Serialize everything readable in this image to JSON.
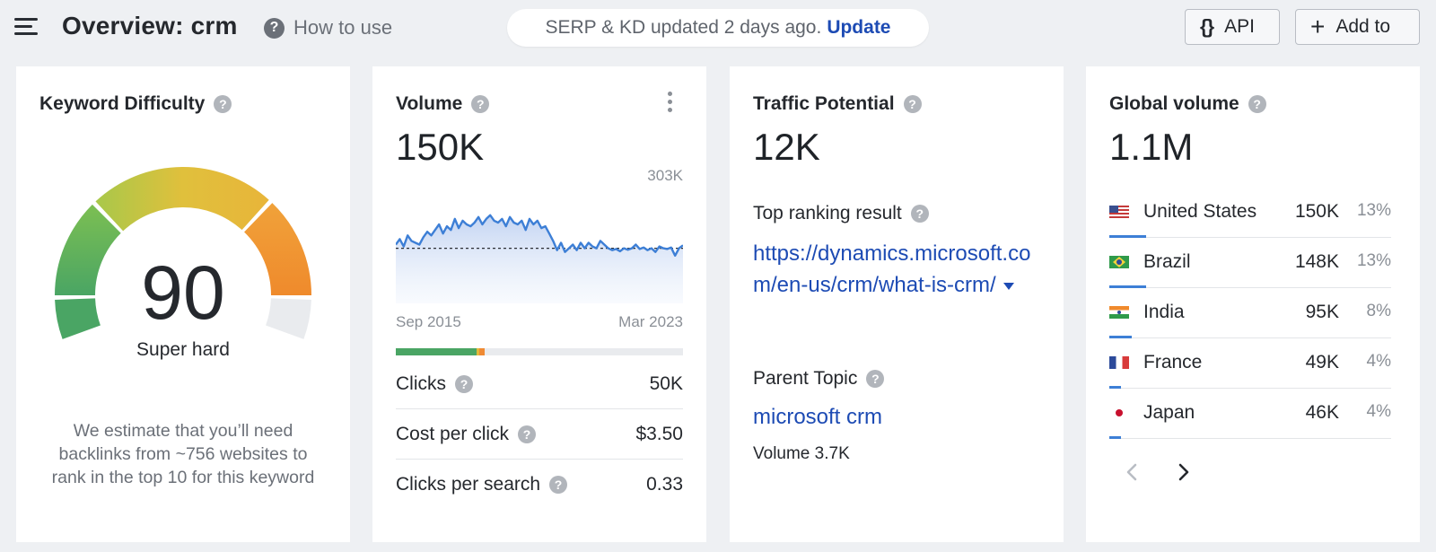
{
  "header": {
    "title": "Overview: crm",
    "how_to_use": "How to use",
    "update_notice": "SERP & KD updated 2 days ago.",
    "update_link": "Update",
    "api_label": "API",
    "add_to_label": "Add to"
  },
  "keyword_difficulty": {
    "title": "Keyword Difficulty",
    "score": "90",
    "score_value": 90,
    "label": "Super hard",
    "description": "We estimate that you’ll need backlinks from ~756 websites to rank in the top 10 for this keyword",
    "colors": {
      "green": "#4aa564",
      "yellow": "#e2b93b",
      "orange": "#ef8a33",
      "empty": "#e9ebee"
    }
  },
  "volume": {
    "title": "Volume",
    "value": "150K",
    "chart_max_label": "303K",
    "axis_start": "Sep 2015",
    "axis_end": "Mar 2023",
    "clicks_breakdown": {
      "organic": 0.28,
      "paid_yellow": 0.01,
      "paid_orange": 0.02
    },
    "metrics": [
      {
        "label": "Clicks",
        "value": "50K"
      },
      {
        "label": "Cost per click",
        "value": "$3.50"
      },
      {
        "label": "Clicks per search",
        "value": "0.33"
      }
    ]
  },
  "chart_data": {
    "type": "area",
    "x_start": "Sep 2015",
    "x_end": "Mar 2023",
    "ylim": [
      0,
      303000
    ],
    "reference_line": 150000,
    "values": [
      160000,
      175000,
      155000,
      185000,
      170000,
      165000,
      160000,
      180000,
      195000,
      185000,
      200000,
      215000,
      190000,
      210000,
      200000,
      230000,
      205000,
      225000,
      215000,
      210000,
      220000,
      235000,
      215000,
      230000,
      240000,
      225000,
      220000,
      230000,
      210000,
      235000,
      220000,
      215000,
      225000,
      200000,
      230000,
      215000,
      225000,
      205000,
      210000,
      190000,
      170000,
      145000,
      165000,
      140000,
      150000,
      160000,
      145000,
      165000,
      150000,
      165000,
      155000,
      150000,
      170000,
      160000,
      150000,
      145000,
      148000,
      142000,
      150000,
      146000,
      150000,
      160000,
      148000,
      152000,
      145000,
      150000,
      140000,
      155000,
      150000,
      148000,
      152000,
      130000,
      150000,
      158000
    ]
  },
  "traffic_potential": {
    "title": "Traffic Potential",
    "value": "12K",
    "top_ranking_label": "Top ranking result",
    "top_url": "https://dynamics.microsoft.com/en-us/crm/what-is-crm/",
    "parent_topic_label": "Parent Topic",
    "parent_topic": "microsoft crm",
    "parent_volume": "Volume 3.7K"
  },
  "global_volume": {
    "title": "Global volume",
    "value": "1.1M",
    "countries": [
      {
        "name": "United States",
        "volume": "150K",
        "percent": "13%",
        "share": 0.13,
        "flag": "us-flag-icon"
      },
      {
        "name": "Brazil",
        "volume": "148K",
        "percent": "13%",
        "share": 0.13,
        "flag": "brazil-flag-icon"
      },
      {
        "name": "India",
        "volume": "95K",
        "percent": "8%",
        "share": 0.08,
        "flag": "india-flag-icon"
      },
      {
        "name": "France",
        "volume": "49K",
        "percent": "4%",
        "share": 0.04,
        "flag": "france-flag-icon"
      },
      {
        "name": "Japan",
        "volume": "46K",
        "percent": "4%",
        "share": 0.04,
        "flag": "japan-flag-icon"
      }
    ]
  }
}
